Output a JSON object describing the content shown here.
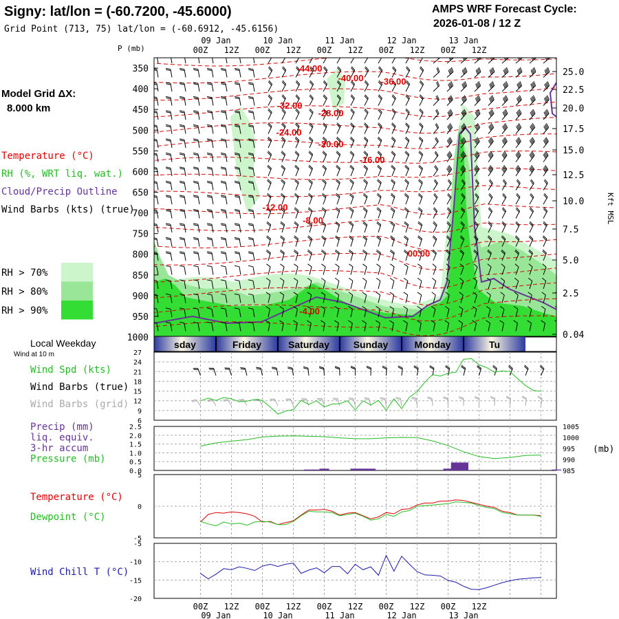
{
  "header": {
    "title": "Signy:  lat/lon = (-60.7200, -45.6000)",
    "grid_point": "Grid Point (713, 75) lat/lon = (-60.6912, -45.6156)",
    "model": "AMPS WRF Forecast Cycle:",
    "cycle": "2026-01-08 / 12  Z"
  },
  "left_panel": {
    "grid_label": "Model Grid ΔX:",
    "grid_value": "8.000 km",
    "legend": [
      {
        "text": "Temperature (°C)",
        "color": "#dd0000"
      },
      {
        "text": "RH (%, WRT liq. wat.)",
        "color": "#22bb22"
      },
      {
        "text": "Cloud/Precip Outline",
        "color": "#663399"
      },
      {
        "text": "Wind Barbs (kts) (true)",
        "color": "#000000"
      }
    ],
    "rh_legend": [
      {
        "text": "RH > 70%",
        "color": "#ccf5cc"
      },
      {
        "text": "RH > 80%",
        "color": "#99e699"
      },
      {
        "text": "RH > 90%",
        "color": "#33dd33"
      }
    ]
  },
  "time_axis": {
    "ticks": [
      "00Z",
      "12Z",
      "00Z",
      "12Z",
      "00Z",
      "12Z",
      "00Z",
      "12Z",
      "00Z",
      "12Z"
    ],
    "dates": [
      "09 Jan",
      "10 Jan",
      "11 Jan",
      "12 Jan",
      "13 Jan"
    ],
    "p_unit": "P (mb)",
    "right_unit": "Kft MSL"
  },
  "cross_section": {
    "pressure_levels": [
      "350",
      "400",
      "450",
      "500",
      "550",
      "600",
      "650",
      "700",
      "750",
      "800",
      "850",
      "900",
      "950",
      "1000"
    ],
    "height_labels": [
      "25.0",
      "22.5",
      "20.0",
      "17.5",
      "15.0",
      "12.5",
      "10.0",
      "7.5",
      "5.0",
      "2.5",
      "0.04"
    ],
    "temperature_labels": [
      "-44.00",
      "-40.00",
      "-36.00",
      "-32.00",
      "-28.00",
      "-24.00",
      "-20.00",
      "-16.00",
      "-12.00",
      "-8.00",
      "00.00",
      "-4.00"
    ]
  },
  "weekday_bar": {
    "label": "Local Weekday",
    "days": [
      "sday",
      "Friday",
      "Saturday",
      "Sunday",
      "Monday",
      "Tu"
    ]
  },
  "wind_panel": {
    "subtitle": "Wind at 10 m",
    "labels": [
      {
        "text": "Wind Spd (kts)",
        "color": "#22bb22"
      },
      {
        "text": "Wind Barbs (true)",
        "color": "#000000"
      },
      {
        "text": "Wind Barbs (grid)",
        "color": "#aaaaaa"
      }
    ],
    "y_ticks": [
      "27",
      "24",
      "21",
      "18",
      "15",
      "12",
      "9",
      "6"
    ]
  },
  "precip_panel": {
    "labels": [
      {
        "text": "Precip (mm)",
        "color": "#663399"
      },
      {
        "text": "liq. equiv.",
        "color": "#663399"
      },
      {
        "text": "3-hr accum",
        "color": "#663399"
      },
      {
        "text": "Pressure (mb)",
        "color": "#22bb22"
      }
    ],
    "left_ticks": [
      "2.5",
      "2.0",
      "1.5",
      "1.0",
      "0.5",
      "0.0"
    ],
    "right_ticks": [
      "1005",
      "1000",
      "995",
      "990",
      "985"
    ],
    "right_unit": "(mb)"
  },
  "temp_panel": {
    "labels": [
      {
        "text": "Temperature (°C)",
        "color": "#dd0000"
      },
      {
        "text": "Dewpoint (°C)",
        "color": "#22bb22"
      }
    ],
    "y_ticks": [
      "5",
      "0",
      "-5"
    ]
  },
  "chill_panel": {
    "labels": [
      {
        "text": "Wind Chill T (°C)",
        "color": "#1a1aaa"
      }
    ],
    "y_ticks": [
      "-5",
      "-10",
      "-15",
      "-20"
    ]
  },
  "chart_data": [
    {
      "type": "line",
      "title": "Wind at 10 m",
      "ylabel": "Wind Spd (kts)",
      "ylim": [
        6,
        27
      ],
      "x_hours": [
        0,
        3,
        6,
        9,
        12,
        15,
        18,
        21,
        24,
        27,
        30,
        33,
        36,
        39,
        42,
        45,
        48,
        51,
        54,
        57,
        60,
        63,
        66,
        69,
        72,
        75,
        78,
        81,
        84,
        87,
        90,
        93,
        96,
        99,
        102,
        105,
        108,
        111,
        114,
        117,
        120,
        123,
        126,
        129,
        132
      ],
      "series": [
        {
          "name": "Wind Spd (kts)",
          "values": [
            12,
            12.8,
            12.1,
            13,
            12.6,
            11.7,
            11.9,
            12.4,
            12.1,
            10.1,
            7.9,
            8.8,
            9.3,
            12.1,
            10.9,
            12,
            10.1,
            11,
            11.1,
            12,
            9.2,
            12,
            10.7,
            12.1,
            9.1,
            12.6,
            9.6,
            13.1,
            14.8,
            17.8,
            20.1,
            19.6,
            20.5,
            20.8,
            24.8,
            25,
            23.1,
            22.2,
            20.8,
            21.2,
            21,
            18.8,
            16.7,
            15.2,
            14.9
          ]
        }
      ]
    },
    {
      "type": "bar",
      "ylabel": "Precip (mm)",
      "ylim": [
        0,
        2.5
      ],
      "x_hours": [
        42,
        45,
        48,
        60,
        63,
        66,
        96,
        99,
        102,
        138
      ],
      "values": [
        0.05,
        0.05,
        0.1,
        0.1,
        0.1,
        0.1,
        0.1,
        0.45,
        0.45,
        0.05
      ]
    },
    {
      "type": "line",
      "ylabel": "Pressure (mb)",
      "ylim": [
        985,
        1005
      ],
      "x_hours": [
        0,
        6,
        12,
        18,
        24,
        30,
        36,
        42,
        48,
        54,
        60,
        66,
        72,
        78,
        84,
        90,
        96,
        102,
        108,
        114,
        120,
        126,
        132
      ],
      "series": [
        {
          "name": "Pressure (mb)",
          "values": [
            996,
            997.5,
            998.3,
            999,
            1000.2,
            1000.6,
            1000.7,
            1000.5,
            1000.3,
            999.8,
            999.4,
            999.4,
            999.8,
            1000,
            999.9,
            998.4,
            996.3,
            993.5,
            991.3,
            990.4,
            990.9,
            991.8,
            992
          ]
        }
      ]
    },
    {
      "type": "line",
      "ylim": [
        -5,
        5
      ],
      "x_hours": [
        0,
        3,
        6,
        9,
        12,
        15,
        18,
        21,
        24,
        27,
        30,
        33,
        36,
        39,
        42,
        45,
        48,
        51,
        54,
        57,
        60,
        63,
        66,
        69,
        72,
        75,
        78,
        81,
        84,
        87,
        90,
        93,
        96,
        99,
        102,
        105,
        108,
        111,
        114,
        117,
        120,
        123,
        126,
        129,
        132
      ],
      "series": [
        {
          "name": "Temperature (°C)",
          "values": [
            -2.5,
            -1.3,
            -1,
            -1.1,
            -0.9,
            -1,
            -1.2,
            -1.6,
            -2.5,
            -2.4,
            -2.9,
            -2.6,
            -2.3,
            -1.4,
            -0.6,
            -0.6,
            -0.5,
            -0.8,
            -1.4,
            -1.1,
            -1,
            -1.5,
            -2,
            -1.7,
            -1,
            -1.2,
            -0.5,
            -0.4,
            0.2,
            0.5,
            0.5,
            0.8,
            0.8,
            1,
            0.9,
            0.6,
            0.3,
            0,
            -0.2,
            -0.8,
            -1,
            -1.4,
            -1.4,
            -1.4,
            -1.5
          ]
        },
        {
          "name": "Dewpoint (°C)",
          "values": [
            -2.4,
            -2.8,
            -3.1,
            -2.5,
            -2.8,
            -2.7,
            -3,
            -2.5,
            -2.4,
            -2.5,
            -2.9,
            -2.9,
            -2.4,
            -1.5,
            -0.8,
            -0.9,
            -0.9,
            -1,
            -1.5,
            -1.3,
            -1.1,
            -1.6,
            -2.2,
            -2,
            -1.3,
            -1.6,
            -0.9,
            -0.7,
            0,
            0.1,
            0.2,
            0.3,
            0.4,
            0.7,
            0.6,
            0.5,
            0.1,
            -0.2,
            -0.4,
            -1,
            -1.2,
            -1.4,
            -1.4,
            -1.4,
            -1.6
          ]
        }
      ]
    },
    {
      "type": "line",
      "ylabel": "Wind Chill T (°C)",
      "ylim": [
        -20,
        -5
      ],
      "x_hours": [
        0,
        3,
        6,
        9,
        12,
        15,
        18,
        21,
        24,
        27,
        30,
        33,
        36,
        39,
        42,
        45,
        48,
        51,
        54,
        57,
        60,
        63,
        66,
        69,
        72,
        75,
        78,
        81,
        84,
        87,
        90,
        93,
        96,
        99,
        102,
        105,
        108,
        111,
        114,
        117,
        120,
        123,
        126,
        129,
        132
      ],
      "series": [
        {
          "name": "Wind Chill T (°C)",
          "values": [
            -13.2,
            -14.7,
            -13.4,
            -11.9,
            -12.2,
            -11.4,
            -11.8,
            -12.4,
            -11.2,
            -10.7,
            -11.3,
            -10.7,
            -10.4,
            -13.2,
            -12.3,
            -11.7,
            -13,
            -11.3,
            -11.3,
            -13.3,
            -10.7,
            -12.2,
            -11.4,
            -13.7,
            -8.3,
            -12.6,
            -8.5,
            -10.7,
            -12.7,
            -13.6,
            -13.7,
            -13.9,
            -15.1,
            -15.6,
            -16.7,
            -17.5,
            -17.6,
            -17.1,
            -16.4,
            -15.7,
            -15.2,
            -14.8,
            -14.6,
            -14.4,
            -14.3
          ]
        }
      ]
    }
  ]
}
